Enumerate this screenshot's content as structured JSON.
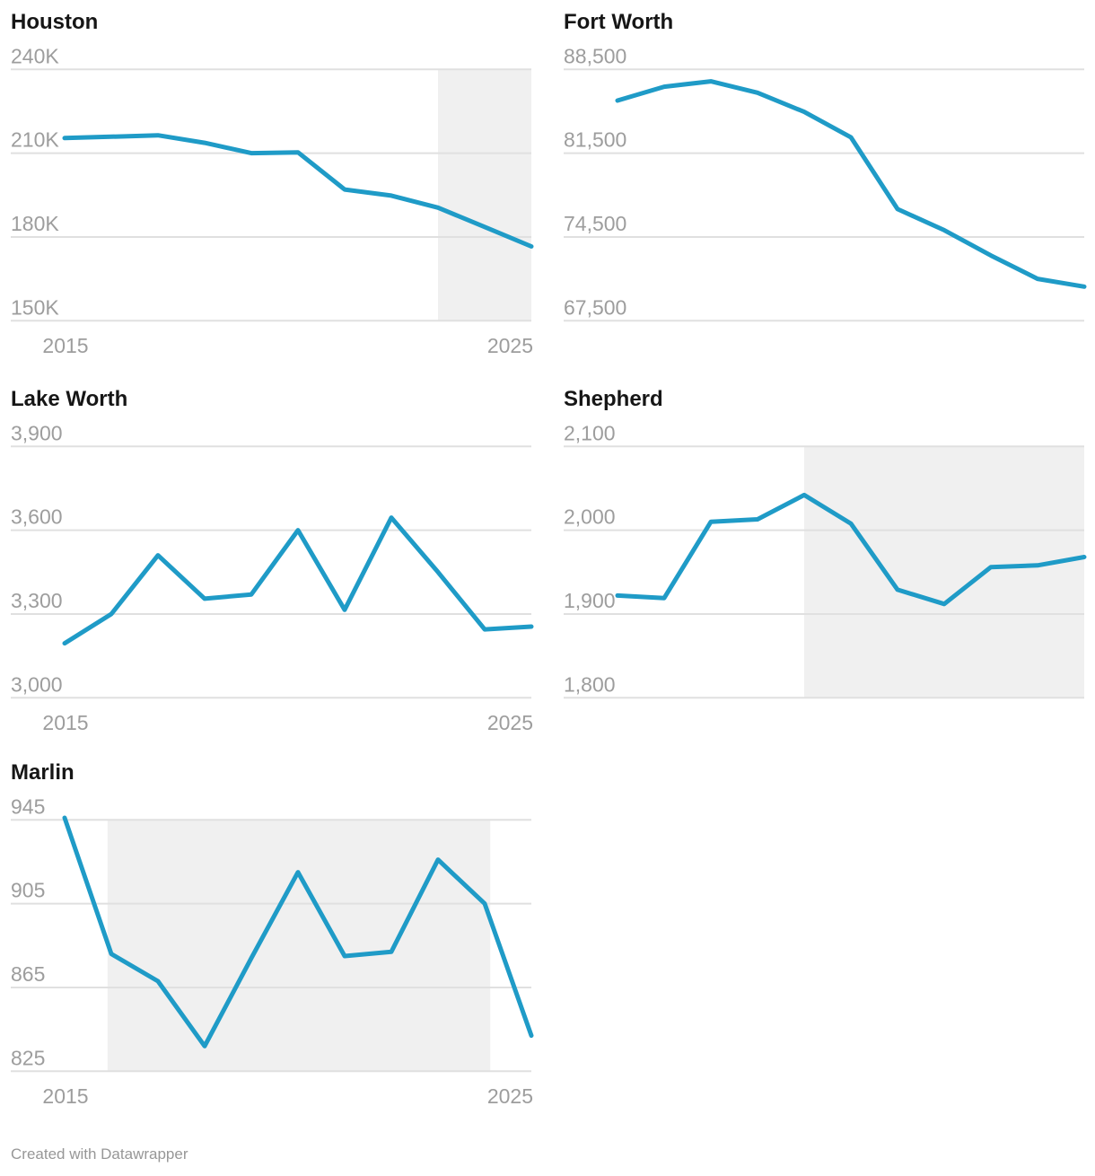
{
  "footer": {
    "credit": "Created with Datawrapper"
  },
  "colors": {
    "line": "#1f9bc7",
    "grid": "#e0e0e0",
    "band": "#f0f0f0",
    "tick_text": "#9d9d9d",
    "title_text": "#161616",
    "footer_text": "#979797",
    "background": "#ffffff"
  },
  "chart_data": [
    {
      "type": "line",
      "title": "Houston",
      "x": [
        2015,
        2016,
        2017,
        2018,
        2019,
        2020,
        2021,
        2022,
        2023,
        2024,
        2025
      ],
      "values": [
        215400,
        215900,
        216400,
        213700,
        210000,
        210300,
        197000,
        194800,
        190500,
        183600,
        176600
      ],
      "ylim": [
        150000,
        240000
      ],
      "yticks": [
        {
          "label": "240K",
          "value": 240000
        },
        {
          "label": "210K",
          "value": 210000
        },
        {
          "label": "180K",
          "value": 180000
        },
        {
          "label": "150K",
          "value": 150000
        }
      ],
      "xticks": [
        {
          "label": "2015",
          "value": 2015
        },
        {
          "label": "2025",
          "value": 2025
        }
      ],
      "show_x_labels": true,
      "highlight_region": [
        2023,
        2025
      ],
      "grid": "horizontal",
      "legend": "none"
    },
    {
      "type": "line",
      "title": "Fort Worth",
      "x": [
        2015,
        2016,
        2017,
        2018,
        2019,
        2020,
        2021,
        2022,
        2023,
        2024,
        2025
      ],
      "values": [
        85900,
        87050,
        87500,
        86550,
        84950,
        82830,
        76830,
        75070,
        72950,
        71000,
        70350
      ],
      "ylim": [
        67500,
        88500
      ],
      "yticks": [
        {
          "label": "88,500",
          "value": 88500
        },
        {
          "label": "81,500",
          "value": 81500
        },
        {
          "label": "74,500",
          "value": 74500
        },
        {
          "label": "67,500",
          "value": 67500
        }
      ],
      "xticks": [],
      "show_x_labels": false,
      "highlight_region": null,
      "grid": "horizontal",
      "legend": "none"
    },
    {
      "type": "line",
      "title": "Lake Worth",
      "x": [
        2015,
        2016,
        2017,
        2018,
        2019,
        2020,
        2021,
        2022,
        2023,
        2024,
        2025
      ],
      "values": [
        3195,
        3300,
        3510,
        3355,
        3370,
        3600,
        3315,
        3645,
        3450,
        3245,
        3255
      ],
      "ylim": [
        3000,
        3900
      ],
      "yticks": [
        {
          "label": "3,900",
          "value": 3900
        },
        {
          "label": "3,600",
          "value": 3600
        },
        {
          "label": "3,300",
          "value": 3300
        },
        {
          "label": "3,000",
          "value": 3000
        }
      ],
      "xticks": [
        {
          "label": "2015",
          "value": 2015
        },
        {
          "label": "2025",
          "value": 2025
        }
      ],
      "show_x_labels": true,
      "highlight_region": null,
      "grid": "horizontal",
      "legend": "none"
    },
    {
      "type": "line",
      "title": "Shepherd",
      "x": [
        2015,
        2016,
        2017,
        2018,
        2019,
        2020,
        2021,
        2022,
        2023,
        2024,
        2025
      ],
      "values": [
        1922,
        1919,
        2010,
        2013,
        2042,
        2008,
        1929,
        1912,
        1956,
        1958,
        1968
      ],
      "ylim": [
        1800,
        2100
      ],
      "yticks": [
        {
          "label": "2,100",
          "value": 2100
        },
        {
          "label": "2,000",
          "value": 2000
        },
        {
          "label": "1,900",
          "value": 1900
        },
        {
          "label": "1,800",
          "value": 1800
        }
      ],
      "xticks": [],
      "show_x_labels": false,
      "highlight_region": [
        2019,
        2025
      ],
      "grid": "horizontal",
      "legend": "none"
    },
    {
      "type": "line",
      "title": "Marlin",
      "x": [
        2015,
        2016,
        2017,
        2018,
        2019,
        2020,
        2021,
        2022,
        2023,
        2024,
        2025
      ],
      "values": [
        946,
        881,
        868,
        837,
        879,
        920,
        880,
        882,
        926,
        905,
        842
      ],
      "ylim": [
        825,
        945
      ],
      "yticks": [
        {
          "label": "945",
          "value": 945
        },
        {
          "label": "905",
          "value": 905
        },
        {
          "label": "865",
          "value": 865
        },
        {
          "label": "825",
          "value": 825
        }
      ],
      "xticks": [
        {
          "label": "2015",
          "value": 2015
        },
        {
          "label": "2025",
          "value": 2025
        }
      ],
      "show_x_labels": true,
      "highlight_region": [
        2015.92,
        2024.12
      ],
      "grid": "horizontal",
      "legend": "none"
    }
  ]
}
